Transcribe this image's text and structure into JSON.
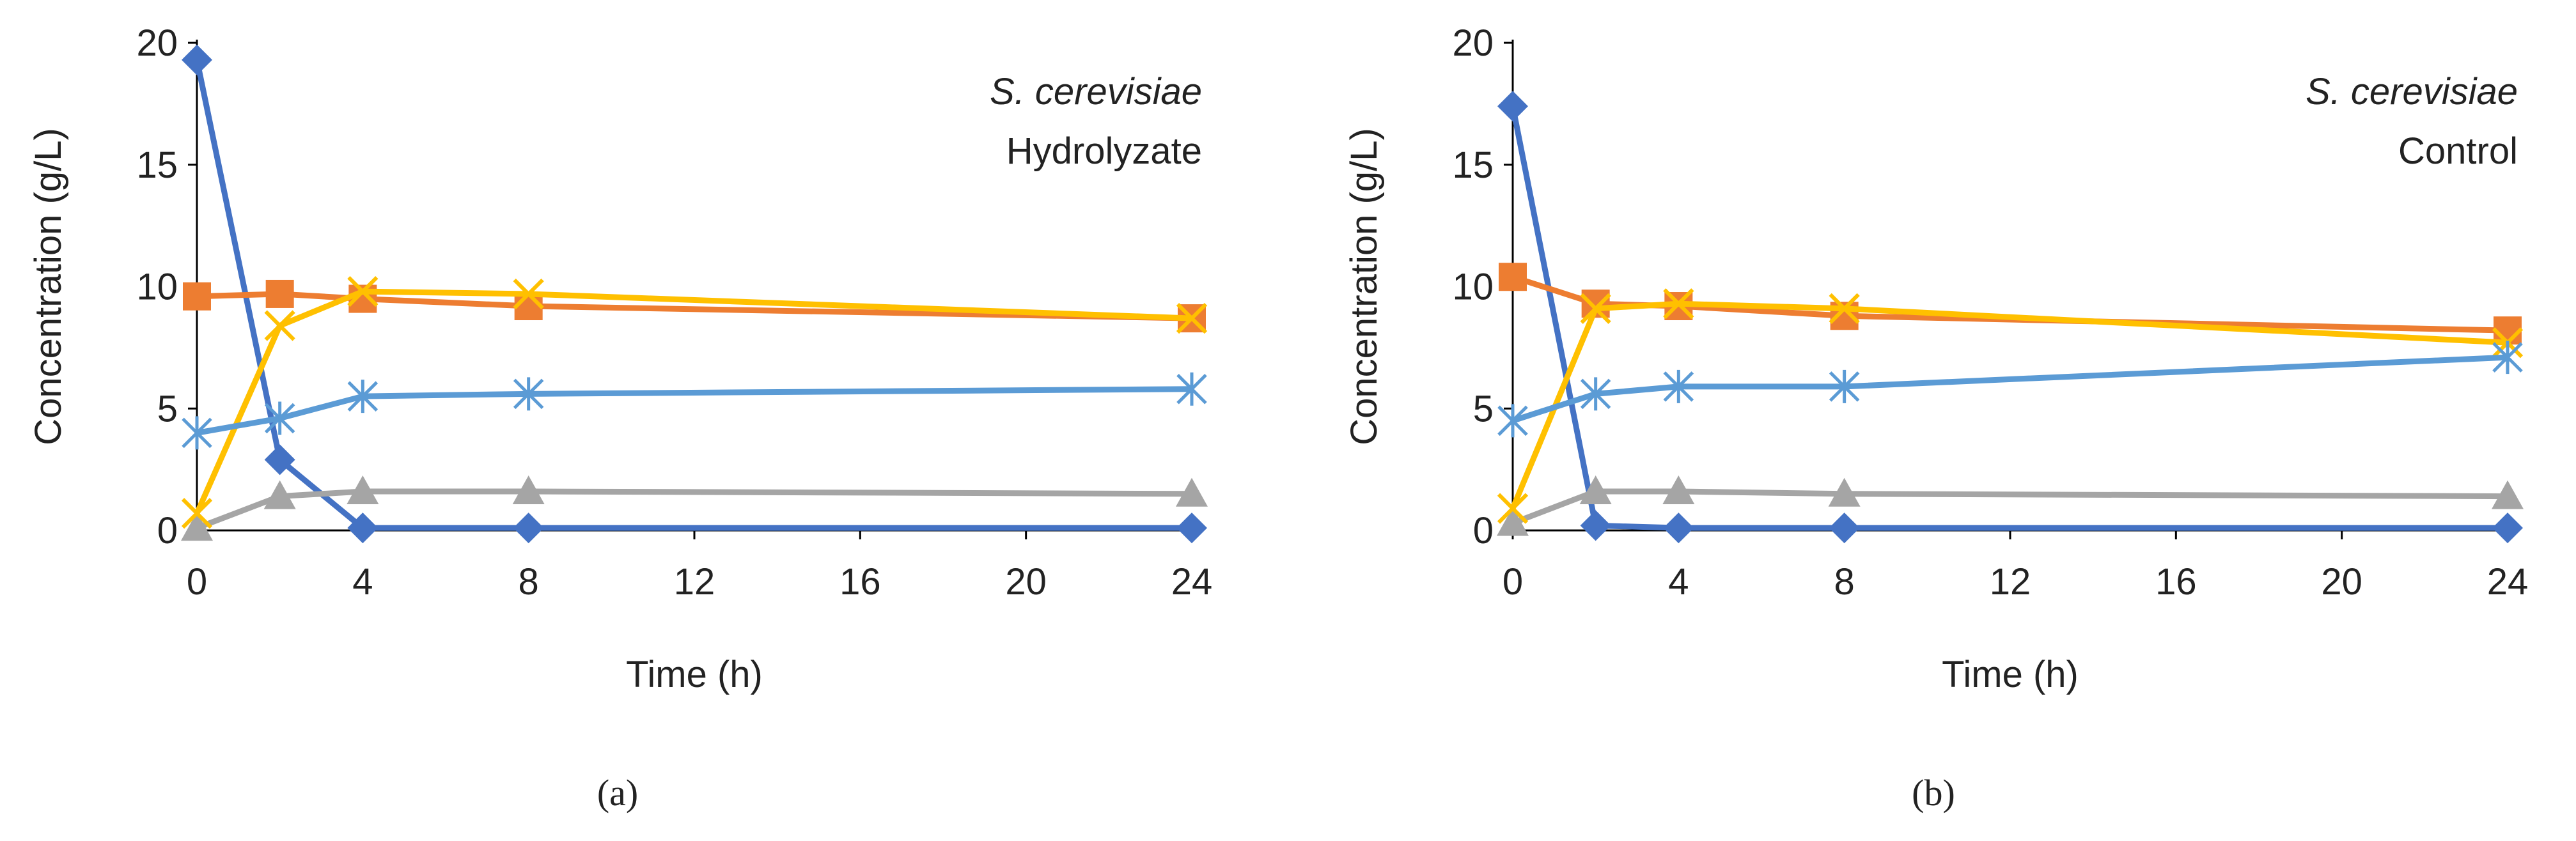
{
  "chart_data": [
    {
      "type": "line",
      "panel_label": "(a)",
      "annotation": [
        "S. cerevisiae",
        "Hydrolyzate"
      ],
      "xlabel": "Time (h)",
      "ylabel": "Concentration (g/L)",
      "xlim": [
        0,
        24
      ],
      "ylim": [
        0,
        20
      ],
      "xticks": [
        0,
        4,
        8,
        12,
        16,
        20,
        24
      ],
      "yticks": [
        0,
        5,
        10,
        15,
        20
      ],
      "x": [
        0,
        2,
        4,
        8,
        24
      ],
      "series": [
        {
          "name": "series-blue-diamond",
          "color": "#4472c4",
          "marker": "diamond",
          "values": [
            19.3,
            2.9,
            0.1,
            0.1,
            0.1
          ]
        },
        {
          "name": "series-orange-square",
          "color": "#ed7d31",
          "marker": "square",
          "values": [
            9.6,
            9.7,
            9.5,
            9.2,
            8.7
          ]
        },
        {
          "name": "series-gray-triangle",
          "color": "#a5a5a5",
          "marker": "triangle",
          "values": [
            0.1,
            1.4,
            1.6,
            1.6,
            1.5
          ]
        },
        {
          "name": "series-yellow-x",
          "color": "#ffc000",
          "marker": "x",
          "values": [
            0.7,
            8.4,
            9.8,
            9.7,
            8.7
          ]
        },
        {
          "name": "series-lightblue-star",
          "color": "#5b9bd5",
          "marker": "star",
          "values": [
            4.0,
            4.6,
            5.5,
            5.6,
            5.8
          ]
        }
      ]
    },
    {
      "type": "line",
      "panel_label": "(b)",
      "annotation": [
        "S. cerevisiae",
        "Control"
      ],
      "xlabel": "Time (h)",
      "ylabel": "Concentration (g/L)",
      "xlim": [
        0,
        24
      ],
      "ylim": [
        0,
        20
      ],
      "xticks": [
        0,
        4,
        8,
        12,
        16,
        20,
        24
      ],
      "yticks": [
        0,
        5,
        10,
        15,
        20
      ],
      "x": [
        0,
        2,
        4,
        8,
        24
      ],
      "series": [
        {
          "name": "series-blue-diamond",
          "color": "#4472c4",
          "marker": "diamond",
          "values": [
            17.4,
            0.2,
            0.1,
            0.1,
            0.1
          ]
        },
        {
          "name": "series-orange-square",
          "color": "#ed7d31",
          "marker": "square",
          "values": [
            10.4,
            9.3,
            9.2,
            8.8,
            8.2
          ]
        },
        {
          "name": "series-gray-triangle",
          "color": "#a5a5a5",
          "marker": "triangle",
          "values": [
            0.3,
            1.6,
            1.6,
            1.5,
            1.4
          ]
        },
        {
          "name": "series-yellow-x",
          "color": "#ffc000",
          "marker": "x",
          "values": [
            0.9,
            9.1,
            9.3,
            9.1,
            7.7
          ]
        },
        {
          "name": "series-lightblue-star",
          "color": "#5b9bd5",
          "marker": "star",
          "values": [
            4.5,
            5.6,
            5.9,
            5.9,
            7.1
          ]
        }
      ]
    }
  ]
}
